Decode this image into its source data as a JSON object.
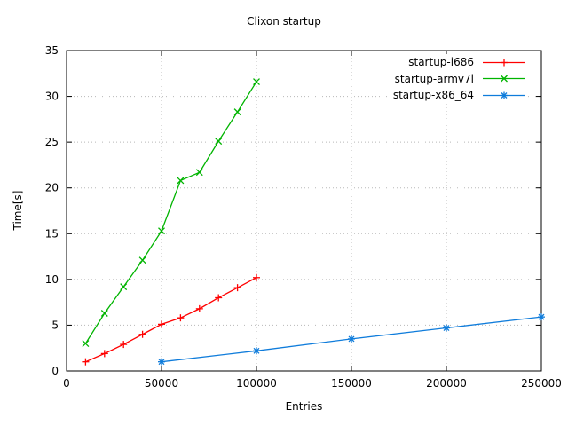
{
  "page": {
    "background": "#ffffff"
  },
  "chart_data": {
    "type": "line",
    "title": "Clixon startup",
    "xlabel": "Entries",
    "ylabel": "Time[s]",
    "xlim": [
      0,
      250000
    ],
    "ylim": [
      0,
      35
    ],
    "xticks": [
      0,
      50000,
      100000,
      150000,
      200000,
      250000
    ],
    "xtick_labels": [
      "0",
      "50000",
      "100000",
      "150000",
      "200000",
      "250000"
    ],
    "yticks": [
      0,
      5,
      10,
      15,
      20,
      25,
      30,
      35
    ],
    "ytick_labels": [
      "0",
      "5",
      "10",
      "15",
      "20",
      "25",
      "30",
      "35"
    ],
    "grid": "dotted",
    "grid_color": "#b8b8b8",
    "axis_color": "#000000",
    "legend_position": "top-right-inside",
    "series": [
      {
        "name": "startup-i686",
        "color": "#ff0000",
        "marker": "plus",
        "x": [
          10000,
          20000,
          30000,
          40000,
          50000,
          60000,
          70000,
          80000,
          90000,
          100000
        ],
        "y": [
          1.0,
          1.9,
          2.9,
          4.0,
          5.1,
          5.8,
          6.8,
          8.0,
          9.1,
          10.2
        ]
      },
      {
        "name": "startup-armv7l",
        "color": "#00b400",
        "marker": "cross",
        "x": [
          10000,
          20000,
          30000,
          40000,
          50000,
          60000,
          70000,
          80000,
          90000,
          100000
        ],
        "y": [
          3.0,
          6.3,
          9.2,
          12.1,
          15.3,
          20.8,
          21.7,
          25.1,
          28.3,
          31.6
        ]
      },
      {
        "name": "startup-x86_64",
        "color": "#0f7cdb",
        "marker": "asterisk",
        "x": [
          50000,
          100000,
          150000,
          200000,
          250000
        ],
        "y": [
          1.0,
          2.2,
          3.5,
          4.7,
          5.9
        ]
      }
    ]
  }
}
